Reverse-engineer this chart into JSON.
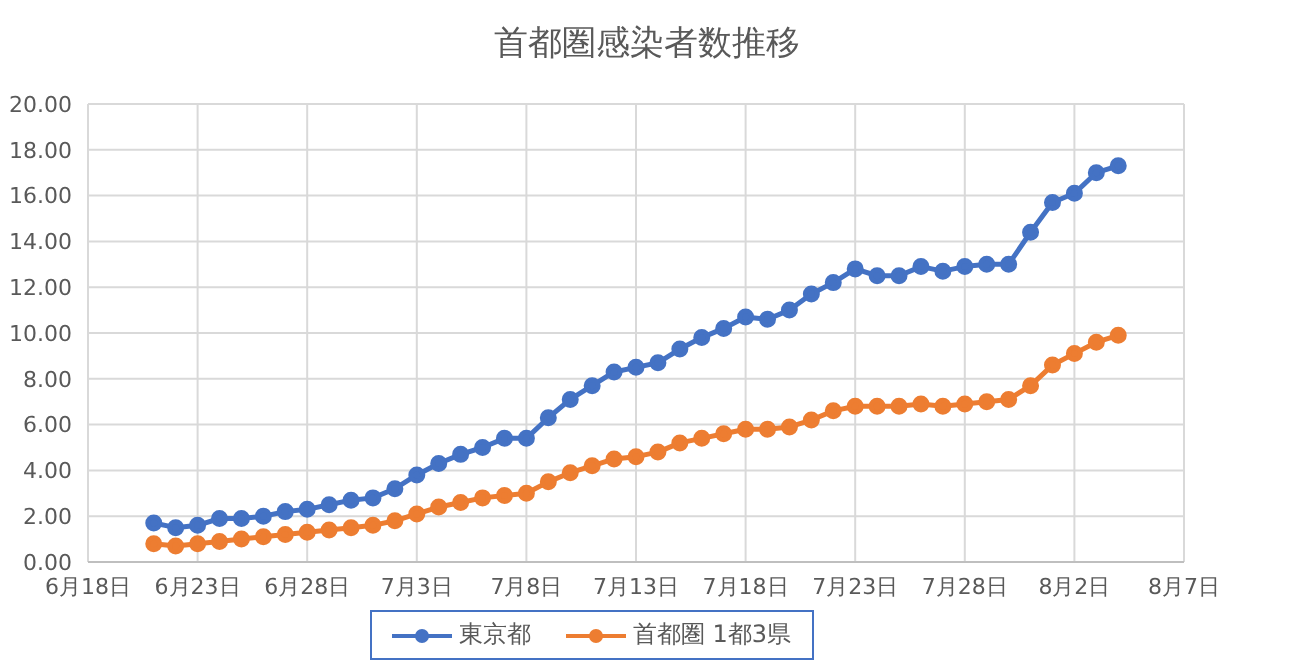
{
  "chart_data": {
    "type": "line",
    "title": "首都圏感染者数推移",
    "x": [
      "--06-21",
      "--06-22",
      "--06-23",
      "--06-24",
      "--06-25",
      "--06-26",
      "--06-27",
      "--06-28",
      "--06-29",
      "--06-30",
      "--07-01",
      "--07-02",
      "--07-03",
      "--07-04",
      "--07-05",
      "--07-06",
      "--07-07",
      "--07-08",
      "--07-09",
      "--07-10",
      "--07-11",
      "--07-12",
      "--07-13",
      "--07-14",
      "--07-15",
      "--07-16",
      "--07-17",
      "--07-18",
      "--07-19",
      "--07-20",
      "--07-21",
      "--07-22",
      "--07-23",
      "--07-24",
      "--07-25",
      "--07-26",
      "--07-27",
      "--07-28",
      "--07-29",
      "--07-30",
      "--07-31",
      "--08-01",
      "--08-02",
      "--08-03",
      "--08-04"
    ],
    "series": [
      {
        "name": "東京都",
        "color": "#4472c4",
        "values": [
          1.7,
          1.5,
          1.6,
          1.9,
          1.9,
          2.0,
          2.2,
          2.3,
          2.5,
          2.7,
          2.8,
          3.2,
          3.8,
          4.3,
          4.7,
          5.0,
          5.4,
          5.4,
          6.3,
          7.1,
          7.7,
          8.3,
          8.5,
          8.7,
          9.3,
          9.8,
          10.2,
          10.7,
          10.6,
          11.0,
          11.7,
          12.2,
          12.8,
          12.5,
          12.5,
          12.9,
          12.7,
          12.9,
          13.0,
          13.0,
          14.4,
          15.7,
          16.1,
          17.0,
          17.3
        ]
      },
      {
        "name": "首都圏 1都3県",
        "color": "#ed7d31",
        "values": [
          0.8,
          0.7,
          0.8,
          0.9,
          1.0,
          1.1,
          1.2,
          1.3,
          1.4,
          1.5,
          1.6,
          1.8,
          2.1,
          2.4,
          2.6,
          2.8,
          2.9,
          3.0,
          3.5,
          3.9,
          4.2,
          4.5,
          4.6,
          4.8,
          5.2,
          5.4,
          5.6,
          5.8,
          5.8,
          5.9,
          6.2,
          6.6,
          6.8,
          6.8,
          6.8,
          6.9,
          6.8,
          6.9,
          7.0,
          7.1,
          7.7,
          8.6,
          9.1,
          9.6,
          9.9
        ]
      }
    ],
    "xlim": [
      "--06-18",
      "--08-07"
    ],
    "xticks": [
      {
        "value": "--06-18",
        "label": "6月18日"
      },
      {
        "value": "--06-23",
        "label": "6月23日"
      },
      {
        "value": "--06-28",
        "label": "6月28日"
      },
      {
        "value": "--07-03",
        "label": "7月3日"
      },
      {
        "value": "--07-08",
        "label": "7月8日"
      },
      {
        "value": "--07-13",
        "label": "7月13日"
      },
      {
        "value": "--07-18",
        "label": "7月18日"
      },
      {
        "value": "--07-23",
        "label": "7月23日"
      },
      {
        "value": "--07-28",
        "label": "7月28日"
      },
      {
        "value": "--08-02",
        "label": "8月2日"
      },
      {
        "value": "--08-07",
        "label": "8月7日"
      }
    ],
    "ylim": [
      0,
      20
    ],
    "yticks": [
      {
        "value": 0,
        "label": "0.00"
      },
      {
        "value": 2,
        "label": "2.00"
      },
      {
        "value": 4,
        "label": "4.00"
      },
      {
        "value": 6,
        "label": "6.00"
      },
      {
        "value": 8,
        "label": "8.00"
      },
      {
        "value": 10,
        "label": "10.00"
      },
      {
        "value": 12,
        "label": "12.00"
      },
      {
        "value": 14,
        "label": "14.00"
      },
      {
        "value": 16,
        "label": "16.00"
      },
      {
        "value": 18,
        "label": "18.00"
      },
      {
        "value": 20,
        "label": "20.00"
      }
    ],
    "grid": true,
    "legend": "bottom",
    "marker": "circle",
    "line_style": "solid"
  }
}
